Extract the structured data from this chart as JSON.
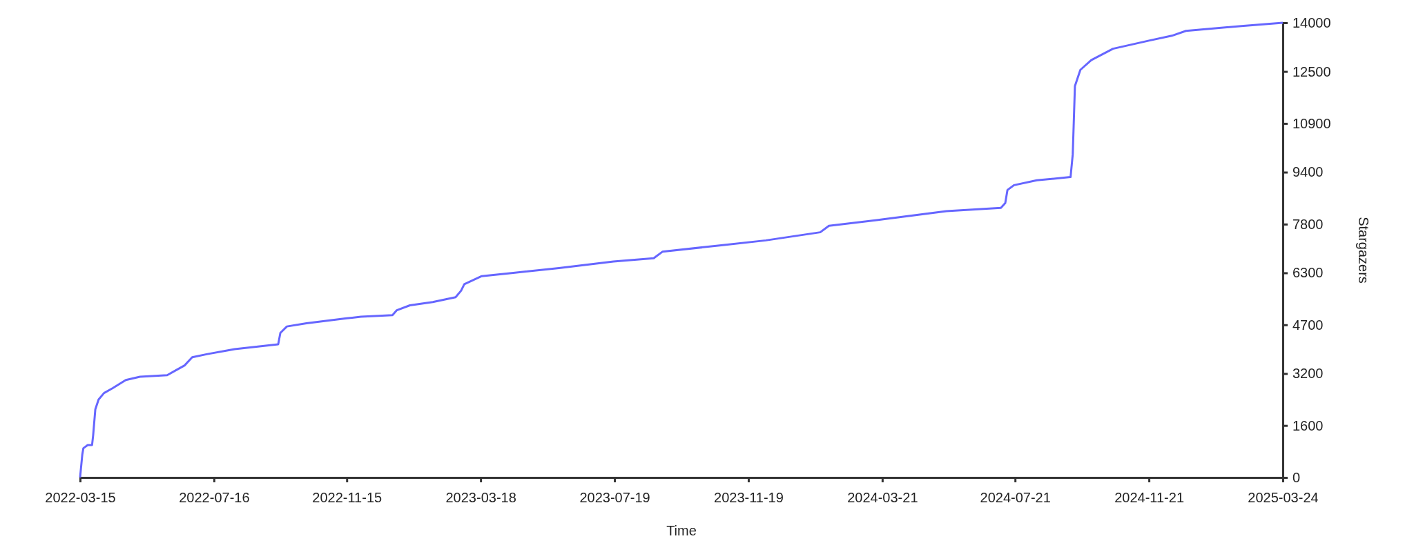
{
  "chart_data": {
    "type": "line",
    "xlabel": "Time",
    "ylabel": "Stargazers",
    "grid": false,
    "marker": "none",
    "line_style": "solid",
    "x": [
      "2022-03-15",
      "2022-03-17",
      "2022-03-18",
      "2022-03-22",
      "2022-03-26",
      "2022-03-27",
      "2022-03-29",
      "2022-04-01",
      "2022-04-06",
      "2022-04-14",
      "2022-04-26",
      "2022-05-09",
      "2022-06-03",
      "2022-06-11",
      "2022-06-19",
      "2022-06-26",
      "2022-07-10",
      "2022-08-04",
      "2022-09-13",
      "2022-09-15",
      "2022-09-21",
      "2022-10-09",
      "2022-11-15",
      "2022-11-28",
      "2022-12-27",
      "2022-12-31",
      "2023-01-12",
      "2023-02-02",
      "2023-02-23",
      "2023-02-28",
      "2023-03-03",
      "2023-03-19",
      "2023-04-17",
      "2023-05-29",
      "2023-07-18",
      "2023-08-24",
      "2023-09-01",
      "2023-10-25",
      "2023-12-05",
      "2024-01-24",
      "2024-02-01",
      "2024-03-22",
      "2024-05-19",
      "2024-07-08",
      "2024-07-12",
      "2024-07-14",
      "2024-07-20",
      "2024-08-10",
      "2024-09-10",
      "2024-09-12",
      "2024-09-14",
      "2024-09-19",
      "2024-09-29",
      "2024-10-19",
      "2024-11-21",
      "2024-12-12",
      "2024-12-25",
      "2025-02-14",
      "2025-03-24"
    ],
    "series": [
      {
        "color": "#6666ff",
        "values": [
          0,
          700,
          900,
          1000,
          1000,
          1300,
          2100,
          2400,
          2600,
          2750,
          3000,
          3100,
          3150,
          3300,
          3450,
          3700,
          3800,
          3950,
          4100,
          4450,
          4650,
          4750,
          4900,
          4950,
          5000,
          5150,
          5300,
          5400,
          5550,
          5750,
          5950,
          6200,
          6300,
          6450,
          6650,
          6750,
          6950,
          7150,
          7300,
          7550,
          7750,
          7950,
          8200,
          8300,
          8450,
          8850,
          9000,
          9150,
          9250,
          9950,
          12050,
          12550,
          12850,
          13200,
          13450,
          13600,
          13750,
          13900,
          14000
        ]
      }
    ],
    "xlim": [
      "2022-03-15",
      "2025-03-24"
    ],
    "xticks": [
      "2022-03-15",
      "2022-07-16",
      "2022-11-15",
      "2023-03-18",
      "2023-07-19",
      "2023-11-19",
      "2024-03-21",
      "2024-07-21",
      "2024-11-21",
      "2025-03-24"
    ],
    "ylim": [
      0,
      14000
    ],
    "yticks": [
      0,
      1600,
      3200,
      4700,
      6300,
      7800,
      9400,
      10900,
      12500,
      14000
    ]
  }
}
